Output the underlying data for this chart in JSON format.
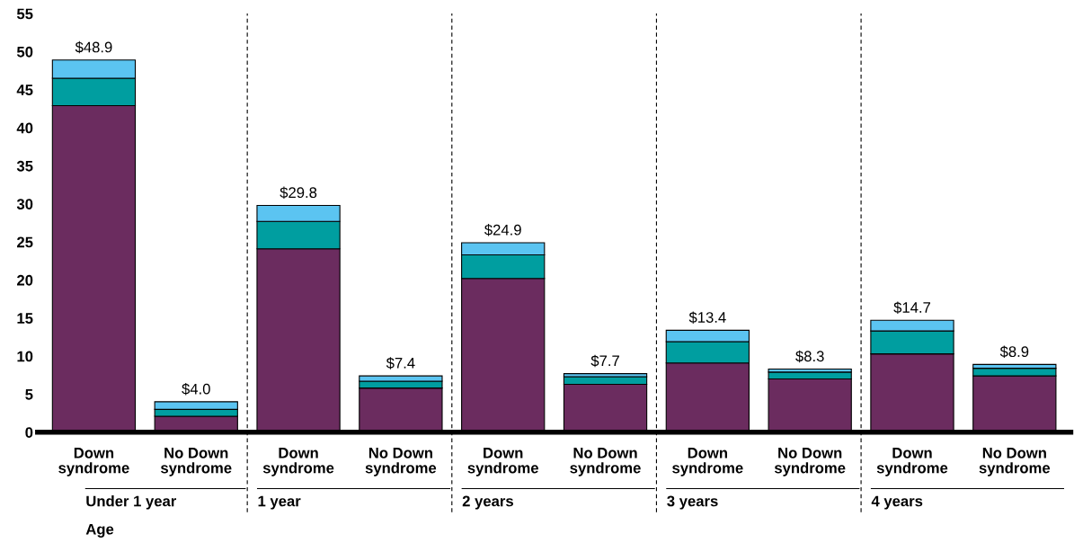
{
  "chart_data": {
    "type": "bar",
    "stacked": true,
    "xlabel": "Age",
    "categories": [
      "Down\nsyndrome",
      "No Down\nsyndrome",
      "Down\nsyndrome",
      "No Down\nsyndrome",
      "Down\nsyndrome",
      "No Down\nsyndrome",
      "Down\nsyndrome",
      "No Down\nsyndrome",
      "Down\nsyndrome",
      "No Down\nsyndrome"
    ],
    "annotations": [
      "Under 1 year",
      "1 year",
      "2 years",
      "3 years",
      "4 years"
    ],
    "series": [
      {
        "color": "#6b2c5f",
        "values": [
          42.9,
          2.1,
          24.1,
          5.8,
          20.2,
          6.3,
          9.1,
          7.0,
          10.3,
          7.4
        ]
      },
      {
        "color": "#009ea0",
        "values": [
          3.6,
          0.9,
          3.6,
          0.9,
          3.1,
          1.0,
          2.8,
          0.9,
          3.0,
          1.0
        ]
      },
      {
        "color": "#5bc4f1",
        "values": [
          2.4,
          1.0,
          2.1,
          0.7,
          1.6,
          0.4,
          1.5,
          0.4,
          1.4,
          0.5
        ]
      }
    ],
    "totals": [
      "$48.9",
      "$4.0",
      "$29.8",
      "$7.4",
      "$24.9",
      "$7.7",
      "$13.4",
      "$8.3",
      "$14.7",
      "$8.9"
    ],
    "ylim": [
      0,
      55
    ],
    "yticks": [
      0,
      5,
      10,
      15,
      20,
      25,
      30,
      35,
      40,
      45,
      50,
      55
    ],
    "grid": false
  }
}
